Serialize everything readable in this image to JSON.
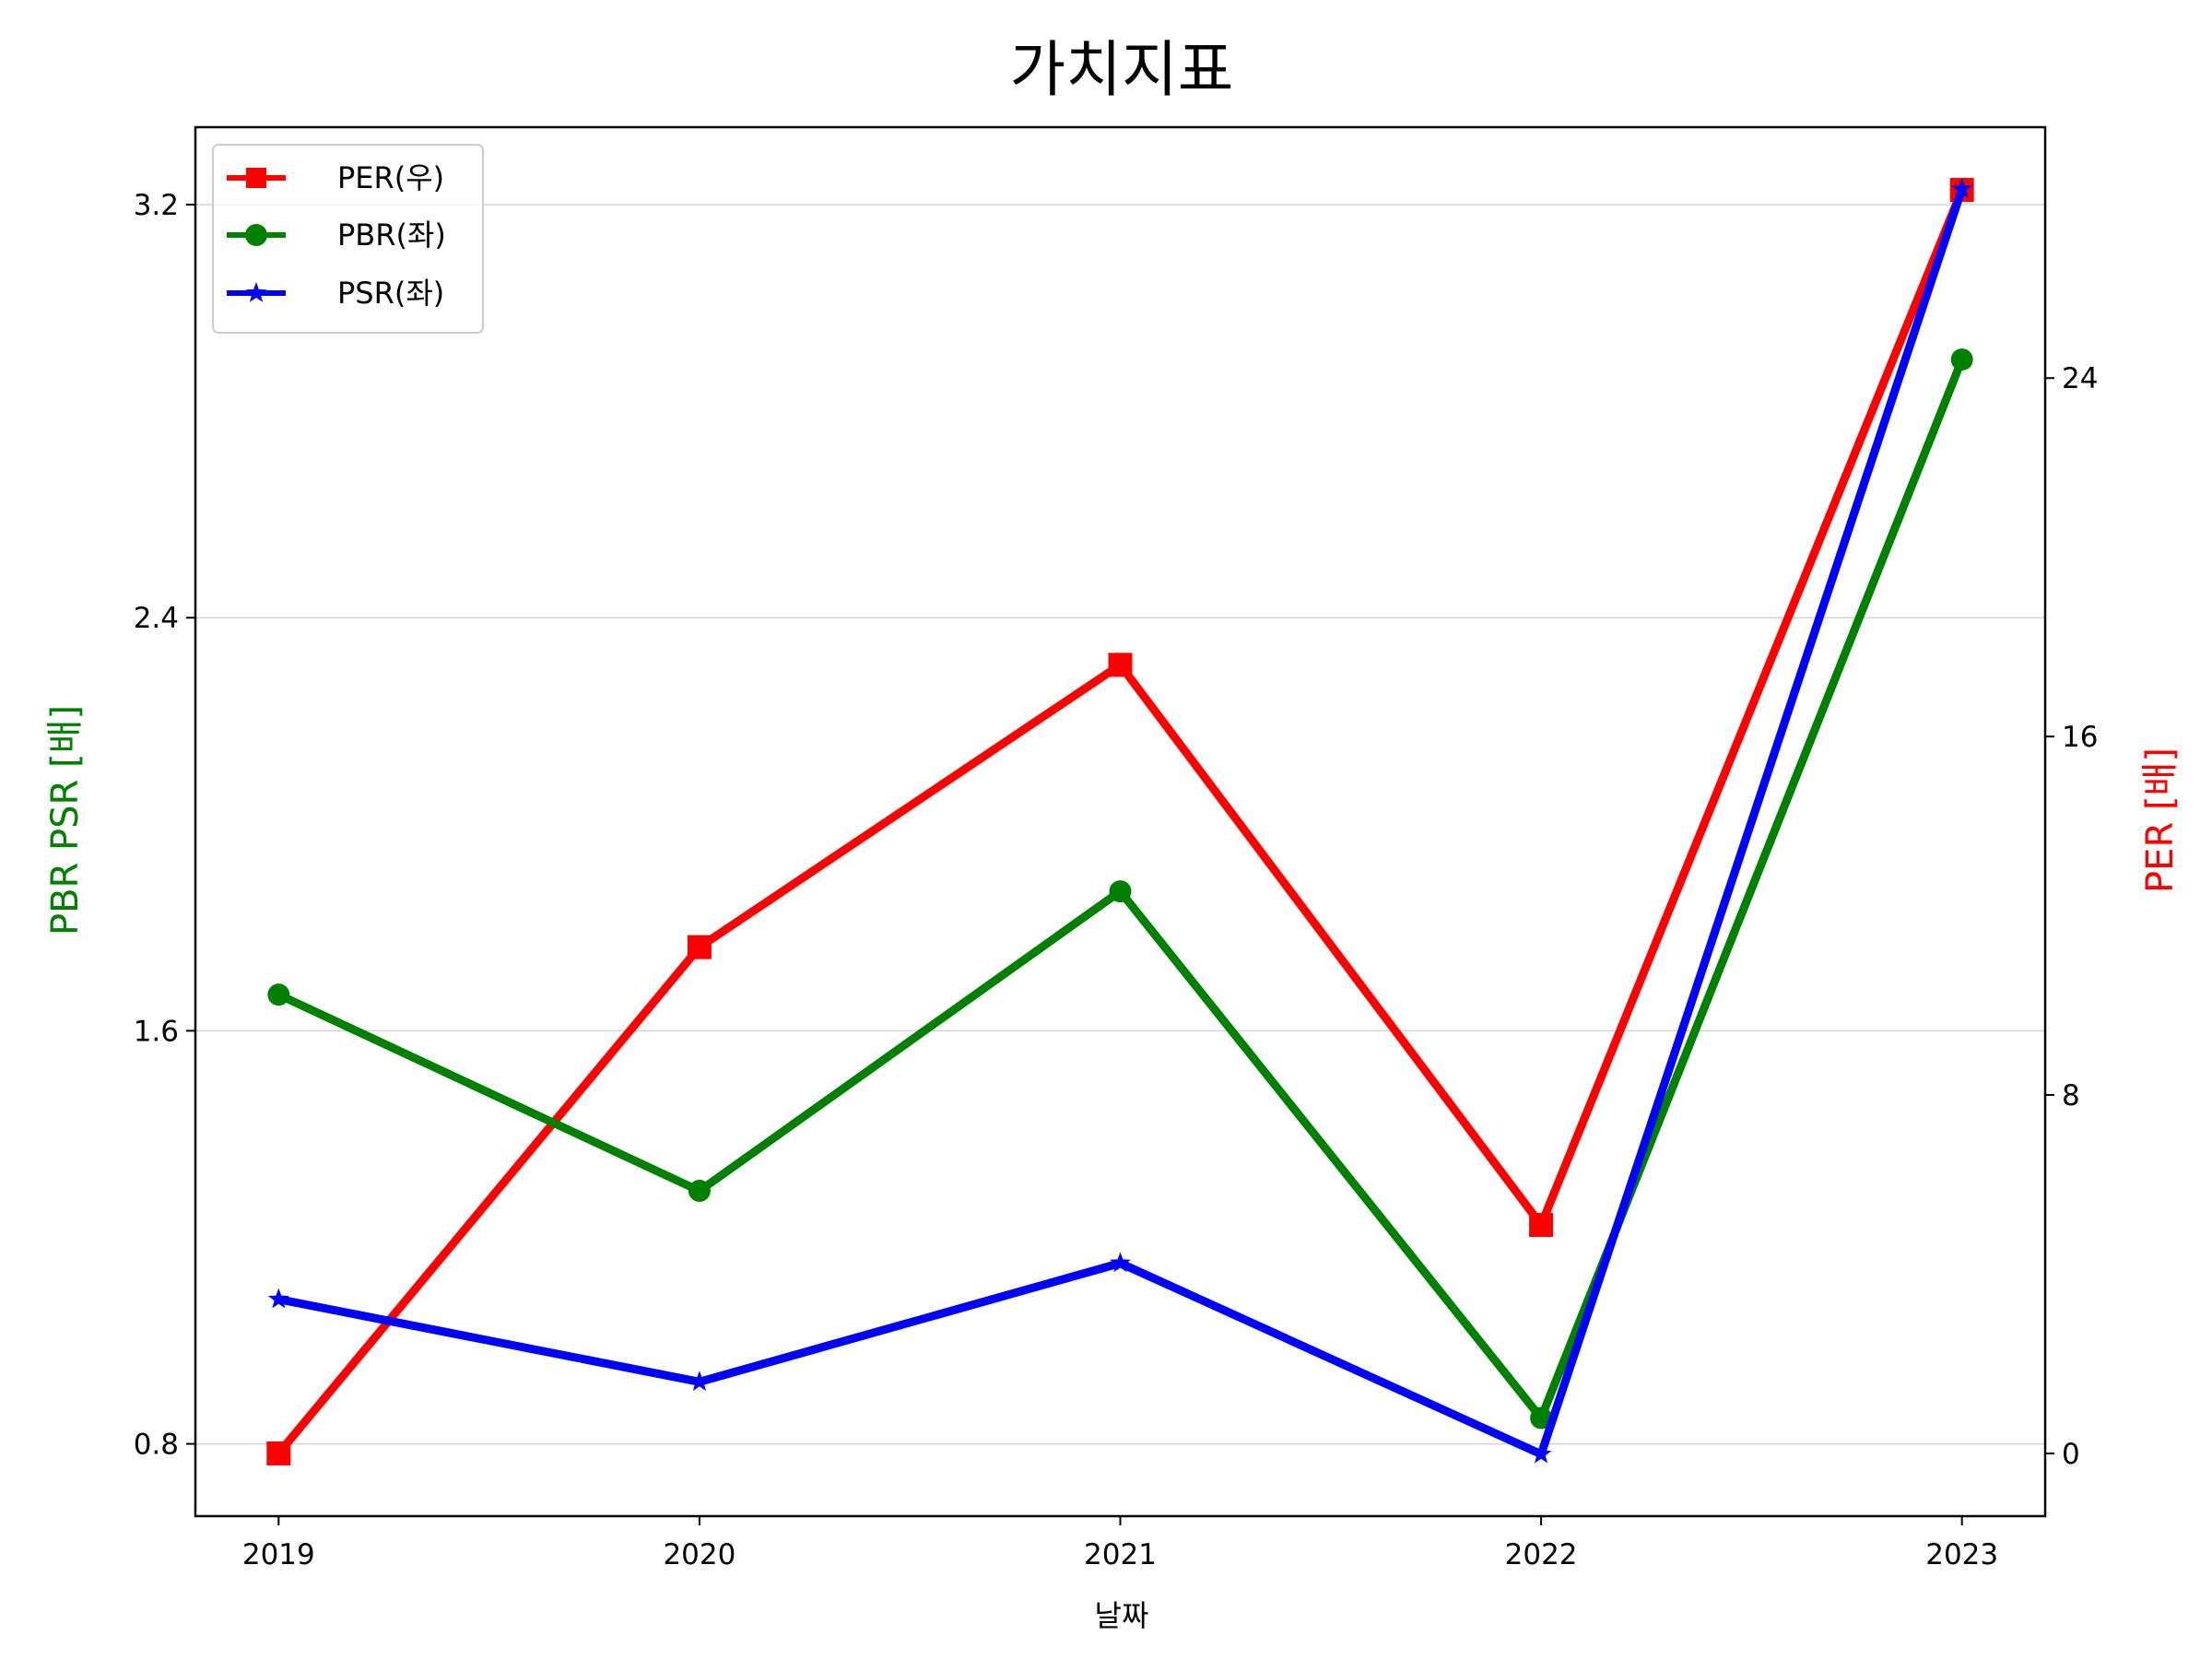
{
  "chart_data": {
    "type": "line",
    "title": "가치지표",
    "xlabel": "날짜",
    "ylabel_left": "PBR PSR [배]",
    "ylabel_right": "PER [배]",
    "categories": [
      "2019",
      "2020",
      "2021",
      "2022",
      "2023"
    ],
    "y_left": {
      "lim": [
        0.66,
        3.35
      ],
      "ticks": [
        "0.8",
        "1.6",
        "2.4",
        "3.2"
      ]
    },
    "y_right": {
      "lim": [
        -1.4,
        29.6
      ],
      "ticks": [
        "0",
        "8",
        "16",
        "24"
      ]
    },
    "grid": "horizontal (left axis)",
    "legend_position": "upper-left",
    "series": [
      {
        "name": "PER(우)",
        "axis": "right",
        "color": "#ff0000",
        "marker": "square",
        "values": [
          0.0,
          11.3,
          17.6,
          5.1,
          28.2
        ]
      },
      {
        "name": "PBR(좌)",
        "axis": "left",
        "color": "#008000",
        "marker": "circle",
        "values": [
          1.67,
          1.29,
          1.87,
          0.85,
          2.9
        ]
      },
      {
        "name": "PSR(좌)",
        "axis": "left",
        "color": "#0000ff",
        "marker": "star",
        "values": [
          1.08,
          0.92,
          1.15,
          0.78,
          3.23
        ]
      }
    ],
    "colors": {
      "left_label": "#008000",
      "right_label": "#ff0000",
      "grid": "#d3d3d3"
    }
  }
}
